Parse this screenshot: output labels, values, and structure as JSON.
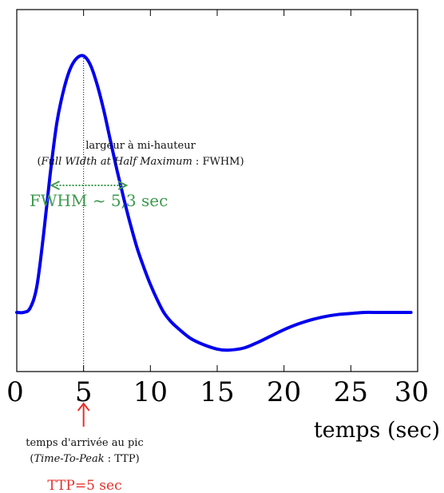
{
  "chart_data": {
    "type": "line",
    "xlabel": "temps (sec)",
    "ylabel": "",
    "xlim": [
      0,
      30
    ],
    "xticks": [
      0,
      5,
      10,
      15,
      20,
      25,
      30
    ],
    "tick_labels": [
      "0",
      "5",
      "10",
      "15",
      "20",
      "25",
      "30"
    ],
    "grid": false,
    "series": [
      {
        "x": [
          0,
          0.5,
          1,
          1.5,
          2,
          2.5,
          3,
          3.5,
          4,
          4.5,
          5,
          5.5,
          6,
          6.5,
          7,
          7.5,
          8,
          8.5,
          9,
          9.5,
          10,
          10.5,
          11,
          11.5,
          12,
          13,
          14,
          15,
          15.8,
          17,
          18,
          19,
          20,
          21,
          22,
          23,
          24,
          25,
          26,
          27,
          28,
          29,
          29.5
        ],
        "y": [
          0.0,
          0.0,
          0.02,
          0.12,
          0.36,
          0.64,
          0.88,
          1.03,
          1.13,
          1.18,
          1.19,
          1.15,
          1.06,
          0.94,
          0.8,
          0.66,
          0.53,
          0.41,
          0.3,
          0.21,
          0.13,
          0.06,
          0.0,
          -0.04,
          -0.07,
          -0.12,
          -0.15,
          -0.17,
          -0.175,
          -0.165,
          -0.14,
          -0.11,
          -0.08,
          -0.055,
          -0.035,
          -0.02,
          -0.01,
          -0.005,
          0.0,
          0.0,
          0.0,
          0.0,
          0.0
        ],
        "color": "#0000ee"
      }
    ],
    "annotations": {
      "peak_marker_x": 5,
      "fwhm_label_line1": "largeur à mi-hauteur",
      "fwhm_label_line2_italic": "Full WIdth at Half Maximum",
      "fwhm_label_line2_rest": " : FWHM)",
      "fwhm_label_line2_open": "(",
      "fwhm_value": "FWHM ~ 5,3 sec",
      "fwhm_start_x": 2.6,
      "fwhm_end_x": 8.2,
      "fwhm_level": 0.59,
      "fwhm_color": "#3c9a4c",
      "ttp_label_line1": "temps d'arrivée au pic",
      "ttp_label_line2_open": "(",
      "ttp_label_line2_italic": "Time-To-Peak",
      "ttp_label_line2_rest": " : TTP)",
      "ttp_value": "TTP=5 sec",
      "ttp_color": "#e8302a"
    }
  }
}
